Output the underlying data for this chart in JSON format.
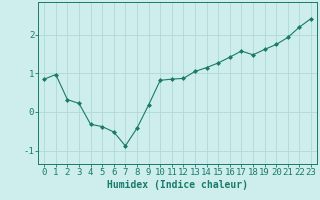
{
  "x": [
    0,
    1,
    2,
    3,
    4,
    5,
    6,
    7,
    8,
    9,
    10,
    11,
    12,
    13,
    14,
    15,
    16,
    17,
    18,
    19,
    20,
    21,
    22,
    23
  ],
  "y": [
    0.85,
    0.97,
    0.32,
    0.22,
    -0.32,
    -0.38,
    -0.52,
    -0.88,
    -0.42,
    0.18,
    0.82,
    0.85,
    0.87,
    1.05,
    1.15,
    1.27,
    1.42,
    1.58,
    1.48,
    1.62,
    1.75,
    1.93,
    2.2,
    2.42
  ],
  "line_color": "#1a7a6a",
  "marker": "D",
  "marker_size": 2.0,
  "background_color": "#ceeeed",
  "grid_color": "#aed8d5",
  "axis_color": "#1a7a6a",
  "xlabel": "Humidex (Indice chaleur)",
  "xlabel_fontsize": 7,
  "tick_fontsize": 6.5,
  "ylim": [
    -1.35,
    2.85
  ],
  "xlim": [
    -0.5,
    23.5
  ],
  "yticks": [
    -1,
    0,
    1,
    2
  ],
  "xticks": [
    0,
    1,
    2,
    3,
    4,
    5,
    6,
    7,
    8,
    9,
    10,
    11,
    12,
    13,
    14,
    15,
    16,
    17,
    18,
    19,
    20,
    21,
    22,
    23
  ],
  "linewidth": 0.8
}
